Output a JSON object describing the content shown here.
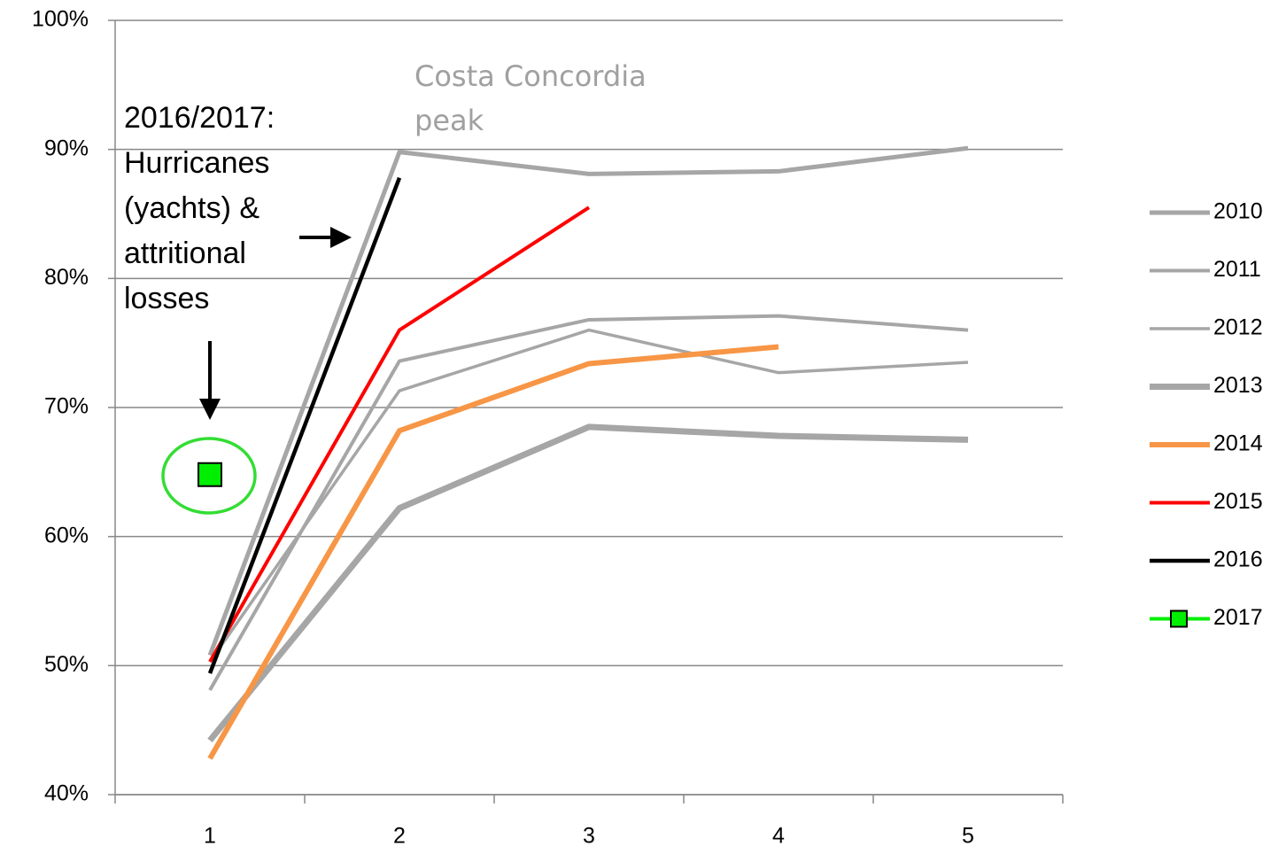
{
  "chart_data": {
    "type": "line",
    "categories": [
      "1",
      "2",
      "3",
      "4",
      "5"
    ],
    "ylim": [
      40,
      100
    ],
    "yticks": [
      {
        "value": 40,
        "label": "40%"
      },
      {
        "value": 50,
        "label": "50%"
      },
      {
        "value": 60,
        "label": "60%"
      },
      {
        "value": 70,
        "label": "70%"
      },
      {
        "value": 80,
        "label": "80%"
      },
      {
        "value": 90,
        "label": "90%"
      },
      {
        "value": 100,
        "label": "100%"
      }
    ],
    "grid": true,
    "legend": "right",
    "series": [
      {
        "name": "2010",
        "color": "#a6a6a6",
        "values": [
          50.8,
          89.8,
          88.1,
          88.3,
          90.1
        ]
      },
      {
        "name": "2011",
        "color": "#a6a6a6",
        "values": [
          48.1,
          73.6,
          76.8,
          77.1,
          76.0
        ]
      },
      {
        "name": "2012",
        "color": "#a6a6a6",
        "values": [
          50.3,
          71.3,
          76.0,
          72.7,
          73.5
        ]
      },
      {
        "name": "2013",
        "color": "#a6a6a6",
        "values": [
          44.2,
          62.2,
          68.5,
          67.8,
          67.5
        ]
      },
      {
        "name": "2014",
        "color": "#f79646",
        "values": [
          42.8,
          68.2,
          73.4,
          74.7,
          null
        ]
      },
      {
        "name": "2015",
        "color": "#ff0000",
        "values": [
          50.3,
          76.0,
          85.5,
          null,
          null
        ]
      },
      {
        "name": "2016",
        "color": "#000000",
        "values": [
          49.4,
          87.8,
          null,
          null,
          null
        ]
      },
      {
        "name": "2017",
        "color": "#00ee00",
        "marker": "square",
        "values": [
          64.8,
          null,
          null,
          null,
          null
        ]
      }
    ],
    "annotations": [
      {
        "text": [
          "Costa Concordia",
          "peak"
        ],
        "color": "#a0a0a0"
      },
      {
        "text": [
          "2016/2017:",
          "Hurricanes",
          "(yachts) &",
          "attritional",
          "losses"
        ],
        "color": "#000000"
      }
    ]
  }
}
